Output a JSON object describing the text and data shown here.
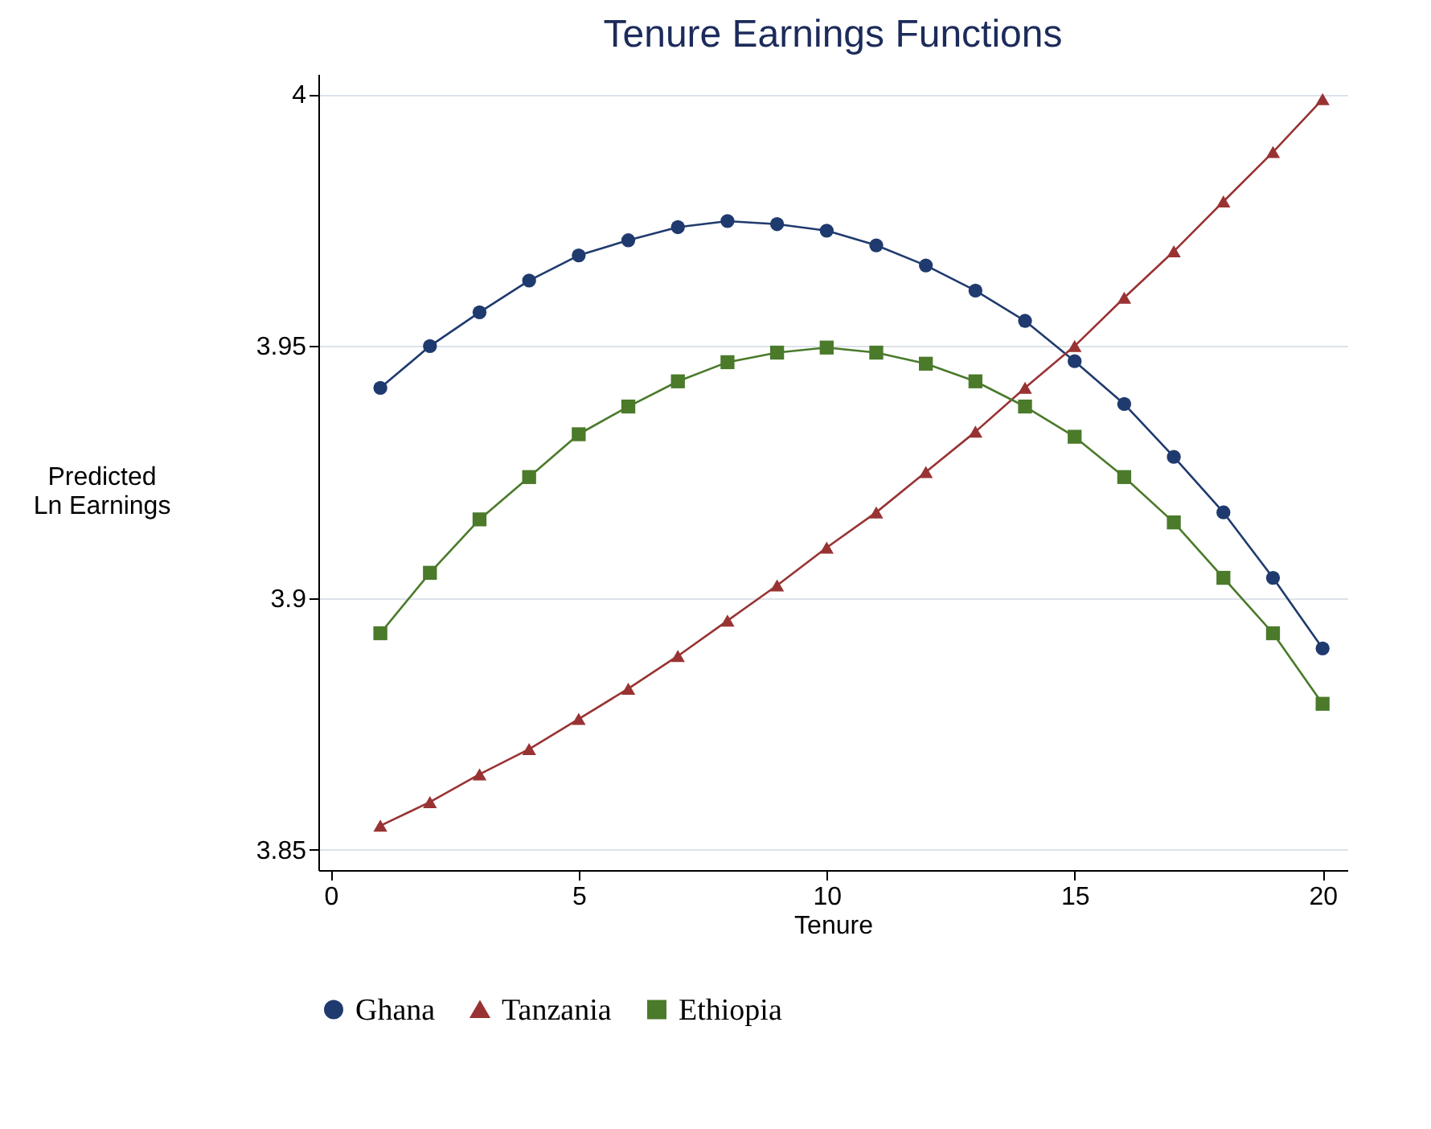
{
  "chart_data": {
    "type": "line",
    "title": "Tenure Earnings Functions",
    "xlabel": "Tenure",
    "ylabel": "Predicted\nLn Earnings",
    "x": [
      1,
      2,
      3,
      4,
      5,
      6,
      7,
      8,
      9,
      10,
      11,
      12,
      13,
      14,
      15,
      16,
      17,
      18,
      19,
      20
    ],
    "series": [
      {
        "name": "Ghana",
        "color": "#1f3a6e",
        "marker": "circle",
        "values": [
          3.9417,
          3.95,
          3.9567,
          3.963,
          3.968,
          3.971,
          3.9736,
          3.9748,
          3.9742,
          3.9729,
          3.97,
          3.966,
          3.961,
          3.955,
          3.947,
          3.9385,
          3.928,
          3.917,
          3.904,
          3.89
        ]
      },
      {
        "name": "Tanzania",
        "color": "#993333",
        "marker": "triangle",
        "values": [
          3.8548,
          3.8595,
          3.865,
          3.87,
          3.876,
          3.882,
          3.8885,
          3.8955,
          3.9025,
          3.91,
          3.917,
          3.925,
          3.933,
          3.9417,
          3.95,
          3.9596,
          3.9688,
          3.9787,
          3.9885,
          3.999
        ]
      },
      {
        "name": "Ethiopia",
        "color": "#4a7a2a",
        "marker": "square",
        "values": [
          3.893,
          3.905,
          3.9156,
          3.924,
          3.9325,
          3.938,
          3.943,
          3.9468,
          3.9487,
          3.9497,
          3.9487,
          3.9465,
          3.943,
          3.938,
          3.932,
          3.924,
          3.915,
          3.904,
          3.893,
          3.879
        ]
      }
    ],
    "xlim": [
      -0.25,
      20.5
    ],
    "xticks": [
      0,
      5,
      10,
      15,
      20
    ],
    "ylim": [
      3.846,
      4.004
    ],
    "yticks": [
      3.85,
      3.9,
      3.95,
      4
    ],
    "grid": "y",
    "legend": "bottom",
    "line_style": "solid"
  }
}
